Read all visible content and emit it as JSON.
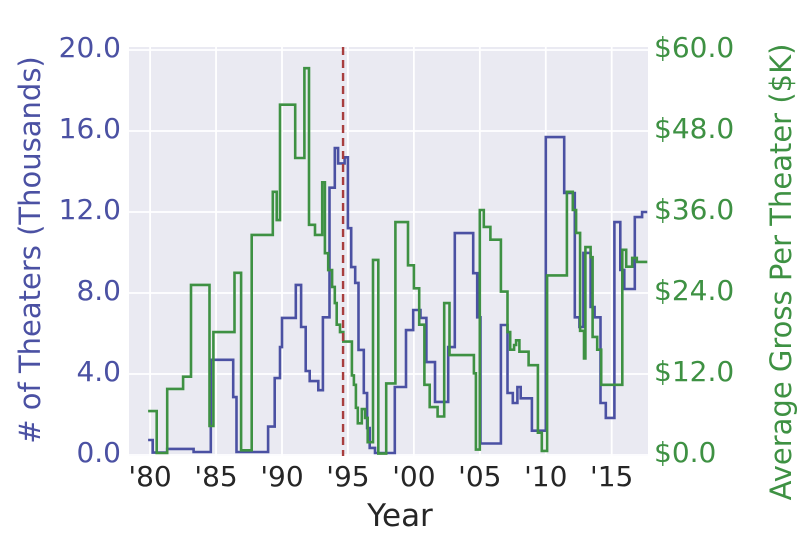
{
  "chart_data": {
    "type": "line",
    "subtype": "step-post",
    "title": "",
    "xlabel": "Year",
    "grid": true,
    "background": "#eaeaf2",
    "gridline_color": "#ffffff",
    "x_range": [
      1978.4,
      2017.75
    ],
    "x_end_extend": 2017.7,
    "x_ticks": {
      "values": [
        1980,
        1985,
        1990,
        1995,
        2000,
        2005,
        2010,
        2015
      ],
      "labels": [
        "'80",
        "'85",
        "'90",
        "'95",
        "'00",
        "'05",
        "'10",
        "'15"
      ],
      "color": "#262626"
    },
    "left_axis": {
      "label": "# of Theaters (Thousands)",
      "tick_values": [
        0,
        4,
        8,
        12,
        16,
        20
      ],
      "tick_labels": [
        "0.0",
        "4.0",
        "8.0",
        "12.0",
        "16.0",
        "20.0"
      ],
      "range": [
        0,
        20.2
      ],
      "color": "#4b51a3"
    },
    "right_axis": {
      "label": "Average Gross Per Theater ($K)",
      "tick_values": [
        0,
        12,
        24,
        36,
        48,
        60
      ],
      "tick_labels": [
        "$0.0",
        "$12.0",
        "$24.0",
        "$36.0",
        "$48.0",
        "$60.0"
      ],
      "range": [
        0,
        60.6
      ],
      "color": "#3e9143"
    },
    "vline": {
      "x": 1994.63,
      "color": "#a83e3e",
      "style": "dashed"
    },
    "series": [
      {
        "name": "# of Theaters (Thousands)",
        "axis": "left",
        "color": "#4b51a3",
        "points": [
          [
            1979.85,
            0.74
          ],
          [
            1980.2,
            0.12
          ],
          [
            1981.3,
            0.3
          ],
          [
            1983.3,
            0.15
          ],
          [
            1984.6,
            4.7
          ],
          [
            1986.3,
            2.86
          ],
          [
            1986.55,
            0.15
          ],
          [
            1988.95,
            1.4
          ],
          [
            1989.45,
            3.8
          ],
          [
            1989.85,
            5.33
          ],
          [
            1990.0,
            6.77
          ],
          [
            1991.05,
            8.4
          ],
          [
            1991.45,
            6.32
          ],
          [
            1991.8,
            4.15
          ],
          [
            1992.1,
            3.65
          ],
          [
            1992.75,
            3.2
          ],
          [
            1993.1,
            6.8
          ],
          [
            1993.6,
            13.2
          ],
          [
            1994.0,
            15.16
          ],
          [
            1994.25,
            14.4
          ],
          [
            1994.75,
            14.7
          ],
          [
            1995.0,
            11.2
          ],
          [
            1995.25,
            9.28
          ],
          [
            1995.55,
            8.5
          ],
          [
            1995.8,
            5.19
          ],
          [
            1996.2,
            3.06
          ],
          [
            1996.45,
            1.33
          ],
          [
            1996.65,
            0.35
          ],
          [
            1997.05,
            0.1
          ],
          [
            1998.55,
            3.36
          ],
          [
            1999.4,
            6.17
          ],
          [
            1999.95,
            7.16
          ],
          [
            2000.5,
            6.77
          ],
          [
            2000.95,
            4.59
          ],
          [
            2001.6,
            2.62
          ],
          [
            2002.6,
            5.33
          ],
          [
            2003.1,
            10.96
          ],
          [
            2004.5,
            8.98
          ],
          [
            2004.8,
            6.8
          ],
          [
            2005.05,
            0.57
          ],
          [
            2006.6,
            6.42
          ],
          [
            2007.1,
            3.06
          ],
          [
            2007.5,
            2.57
          ],
          [
            2007.85,
            3.36
          ],
          [
            2008.1,
            2.8
          ],
          [
            2008.95,
            1.2
          ],
          [
            2010.0,
            15.7
          ],
          [
            2011.4,
            12.94
          ],
          [
            2012.2,
            6.8
          ],
          [
            2012.55,
            6.32
          ],
          [
            2012.85,
            9.98
          ],
          [
            2013.4,
            7.31
          ],
          [
            2013.7,
            6.8
          ],
          [
            2014.15,
            2.57
          ],
          [
            2014.55,
            1.83
          ],
          [
            2015.2,
            11.5
          ],
          [
            2015.65,
            9.14
          ],
          [
            2015.95,
            8.2
          ],
          [
            2016.75,
            11.75
          ],
          [
            2017.3,
            12.0
          ]
        ]
      },
      {
        "name": "Average Gross Per Theater ($K)",
        "axis": "right",
        "color": "#3e9143",
        "points": [
          [
            1979.85,
            6.5
          ],
          [
            1980.5,
            0.3
          ],
          [
            1981.3,
            9.8
          ],
          [
            1982.5,
            11.6
          ],
          [
            1983.1,
            25.2
          ],
          [
            1984.5,
            4.3
          ],
          [
            1984.8,
            18.2
          ],
          [
            1986.4,
            27.0
          ],
          [
            1986.9,
            0.7
          ],
          [
            1987.7,
            32.6
          ],
          [
            1989.3,
            39.0
          ],
          [
            1989.6,
            34.8
          ],
          [
            1989.85,
            51.9
          ],
          [
            1991.0,
            44.0
          ],
          [
            1991.7,
            57.3
          ],
          [
            1992.05,
            34.1
          ],
          [
            1992.5,
            32.6
          ],
          [
            1993.05,
            40.4
          ],
          [
            1993.25,
            29.9
          ],
          [
            1993.5,
            27.4
          ],
          [
            1993.8,
            24.9
          ],
          [
            1994.0,
            22.5
          ],
          [
            1994.15,
            19.3
          ],
          [
            1994.4,
            18.2
          ],
          [
            1994.65,
            16.8
          ],
          [
            1995.3,
            11.8
          ],
          [
            1995.45,
            10.4
          ],
          [
            1995.6,
            7.0
          ],
          [
            1995.75,
            4.7
          ],
          [
            1996.05,
            6.8
          ],
          [
            1996.3,
            5.5
          ],
          [
            1996.5,
            1.9
          ],
          [
            1996.9,
            28.9
          ],
          [
            1997.3,
            0.2
          ],
          [
            1997.9,
            10.6
          ],
          [
            1998.6,
            34.5
          ],
          [
            1999.55,
            28.1
          ],
          [
            2000.0,
            24.7
          ],
          [
            2000.4,
            19.3
          ],
          [
            2000.8,
            10.4
          ],
          [
            2001.2,
            7.1
          ],
          [
            2001.8,
            5.7
          ],
          [
            2002.3,
            22.5
          ],
          [
            2002.7,
            14.8
          ],
          [
            2004.55,
            12.1
          ],
          [
            2004.7,
            0.8
          ],
          [
            2005.0,
            36.3
          ],
          [
            2005.3,
            33.8
          ],
          [
            2005.8,
            31.9
          ],
          [
            2006.6,
            24.2
          ],
          [
            2007.1,
            18.2
          ],
          [
            2007.3,
            15.6
          ],
          [
            2007.6,
            16.3
          ],
          [
            2007.75,
            17.0
          ],
          [
            2008.0,
            15.3
          ],
          [
            2008.7,
            13.3
          ],
          [
            2009.4,
            3.3
          ],
          [
            2009.7,
            0.6
          ],
          [
            2010.1,
            26.6
          ],
          [
            2011.6,
            39.0
          ],
          [
            2012.05,
            36.3
          ],
          [
            2012.3,
            32.9
          ],
          [
            2012.6,
            18.4
          ],
          [
            2012.9,
            14.3
          ],
          [
            2013.0,
            30.8
          ],
          [
            2013.4,
            29.3
          ],
          [
            2013.55,
            17.5
          ],
          [
            2013.9,
            15.6
          ],
          [
            2014.2,
            10.4
          ],
          [
            2015.8,
            30.4
          ],
          [
            2016.1,
            27.9
          ],
          [
            2016.55,
            29.2
          ],
          [
            2016.9,
            28.6
          ]
        ]
      }
    ]
  }
}
